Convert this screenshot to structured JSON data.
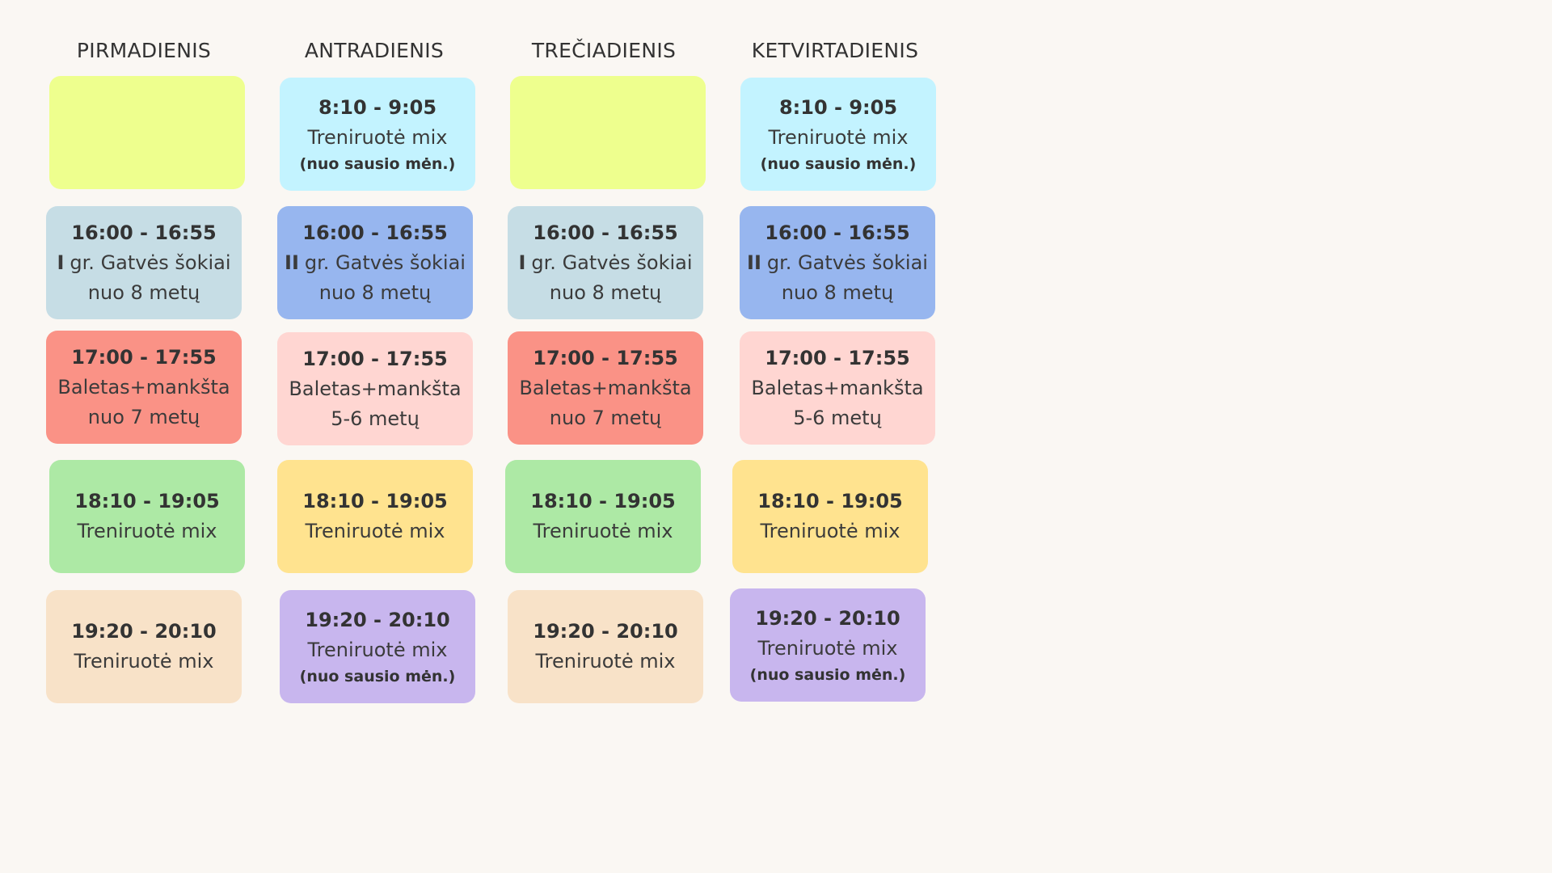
{
  "colors": {
    "background": "#faf7f3",
    "lime": "#eeff8e",
    "cyan": "#c3f3ff",
    "light_blue_gray": "#c6dde5",
    "periwinkle": "#97b6ef",
    "coral": "#fa9286",
    "pink": "#ffd6d2",
    "green": "#ade9a5",
    "yellow": "#ffe38f",
    "peach": "#f8e2c8",
    "lavender": "#c8b6ee"
  },
  "days": [
    {
      "name": "PIRMADIENIS",
      "slots": [
        {
          "color": "#eeff8e",
          "time": "",
          "line1": "",
          "line2": "",
          "note": ""
        },
        {
          "color": "#c6dde5",
          "time": "16:00 - 16:55",
          "group": "I",
          "line1": "gr. Gatvės šokiai",
          "line2": "nuo 8 metų",
          "note": ""
        },
        {
          "color": "#fa9286",
          "time": "17:00 - 17:55",
          "line1": "Baletas+mankšta",
          "line2": "nuo 7 metų",
          "note": ""
        },
        {
          "color": "#ade9a5",
          "time": "18:10 - 19:05",
          "line1": "Treniruotė mix",
          "line2": "",
          "note": ""
        },
        {
          "color": "#f8e2c8",
          "time": "19:20 - 20:10",
          "line1": "Treniruotė mix",
          "line2": "",
          "note": ""
        }
      ]
    },
    {
      "name": "ANTRADIENIS",
      "slots": [
        {
          "color": "#c3f3ff",
          "time": "8:10 - 9:05",
          "line1": "Treniruotė mix",
          "line2": "",
          "note": "(nuo sausio mėn.)"
        },
        {
          "color": "#97b6ef",
          "time": "16:00 - 16:55",
          "group": "II",
          "line1": "gr. Gatvės šokiai",
          "line2": "nuo 8 metų",
          "note": ""
        },
        {
          "color": "#ffd6d2",
          "time": "17:00 - 17:55",
          "line1": "Baletas+mankšta",
          "line2": "5-6 metų",
          "note": ""
        },
        {
          "color": "#ffe38f",
          "time": "18:10 - 19:05",
          "line1": "Treniruotė mix",
          "line2": "",
          "note": ""
        },
        {
          "color": "#c8b6ee",
          "time": "19:20 - 20:10",
          "line1": "Treniruotė mix",
          "line2": "",
          "note": "(nuo sausio mėn.)"
        }
      ]
    },
    {
      "name": "TREČIADIENIS",
      "slots": [
        {
          "color": "#eeff8e",
          "time": "",
          "line1": "",
          "line2": "",
          "note": ""
        },
        {
          "color": "#c6dde5",
          "time": "16:00 - 16:55",
          "group": "I",
          "line1": "gr. Gatvės šokiai",
          "line2": "nuo 8 metų",
          "note": ""
        },
        {
          "color": "#fa9286",
          "time": "17:00 - 17:55",
          "line1": "Baletas+mankšta",
          "line2": "nuo 7 metų",
          "note": ""
        },
        {
          "color": "#ade9a5",
          "time": "18:10 - 19:05",
          "line1": "Treniruotė mix",
          "line2": "",
          "note": ""
        },
        {
          "color": "#f8e2c8",
          "time": "19:20 - 20:10",
          "line1": "Treniruotė mix",
          "line2": "",
          "note": ""
        }
      ]
    },
    {
      "name": "KETVIRTADIENIS",
      "slots": [
        {
          "color": "#c3f3ff",
          "time": "8:10 - 9:05",
          "line1": "Treniruotė mix",
          "line2": "",
          "note": "(nuo sausio mėn.)"
        },
        {
          "color": "#97b6ef",
          "time": "16:00 - 16:55",
          "group": "II",
          "line1": "gr. Gatvės šokiai",
          "line2": "nuo 8 metų",
          "note": ""
        },
        {
          "color": "#ffd6d2",
          "time": "17:00 - 17:55",
          "line1": "Baletas+mankšta",
          "line2": "5-6 metų",
          "note": ""
        },
        {
          "color": "#ffe38f",
          "time": "18:10 - 19:05",
          "line1": "Treniruotė mix",
          "line2": "",
          "note": ""
        },
        {
          "color": "#c8b6ee",
          "time": "19:20 - 20:10",
          "line1": "Treniruotė mix",
          "line2": "",
          "note": "(nuo sausio mėn.)"
        }
      ]
    }
  ]
}
